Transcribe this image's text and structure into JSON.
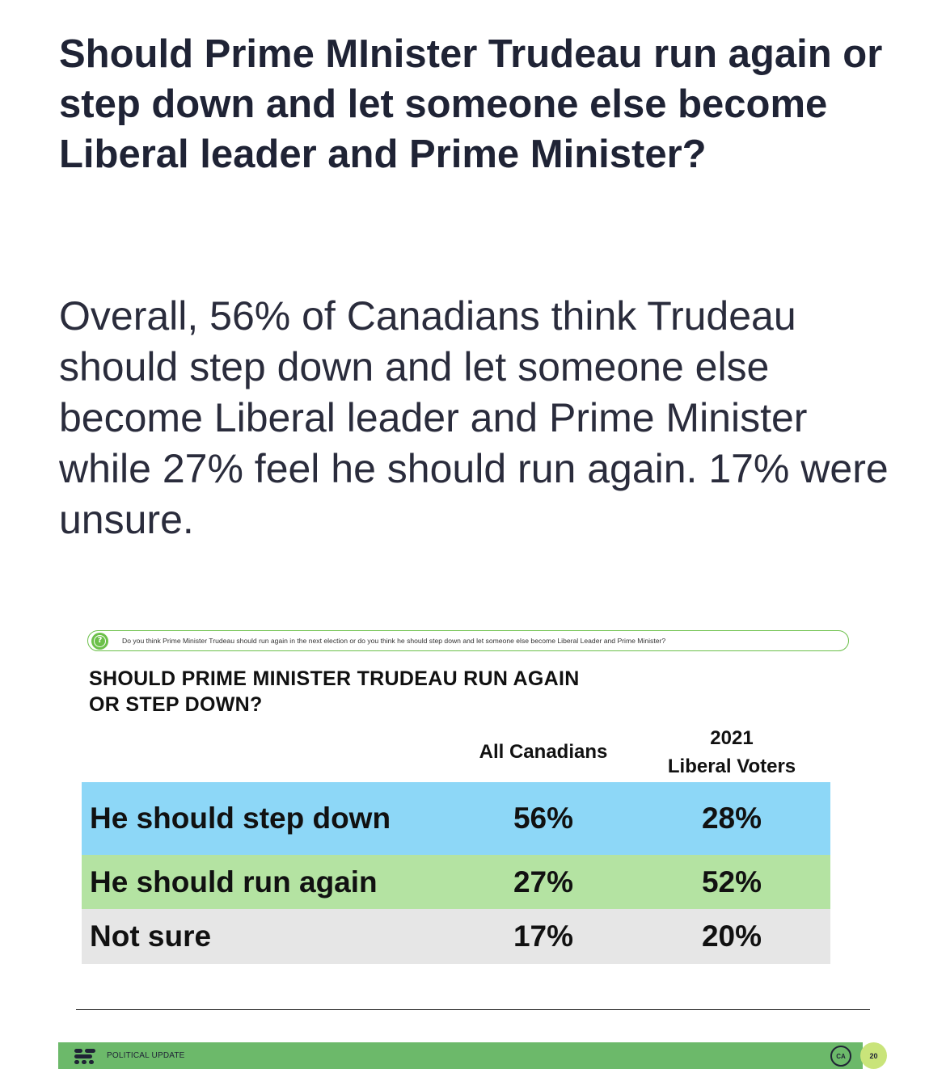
{
  "headline": "Should Prime MInister Trudeau run again or step down and let someone else become Liberal leader and Prime Minister?",
  "summary": "Overall, 56% of Canadians think Trudeau should step down and let someone else become Liberal leader and Prime Minister while 27% feel he should run again. 17% were unsure.",
  "slide": {
    "question_icon": "question-icon",
    "question_text": "Do you think Prime Minister Trudeau should run again in the next election or do you think he should step down and let someone else become Liberal Leader and Prime Minister?",
    "title_line1": "SHOULD PRIME MINISTER TRUDEAU RUN AGAIN",
    "title_line2": "OR STEP DOWN?",
    "columns": {
      "all": "All Canadians",
      "lib_line1": "2021",
      "lib_line2": "Liberal Voters"
    },
    "rows": [
      {
        "label": "He should step down",
        "all": "56%",
        "lib": "28%",
        "color": "#8dd7f7"
      },
      {
        "label": "He should run again",
        "all": "27%",
        "lib": "52%",
        "color": "#b4e3a2"
      },
      {
        "label": "Not sure",
        "all": "17%",
        "lib": "20%",
        "color": "#e6e6e6"
      }
    ],
    "footer": {
      "brand_icon": "brand-lines-icon",
      "label": "POLITICAL UPDATE",
      "logo_text": "CA",
      "page_number": "20",
      "color": "#6cb96a"
    }
  }
}
